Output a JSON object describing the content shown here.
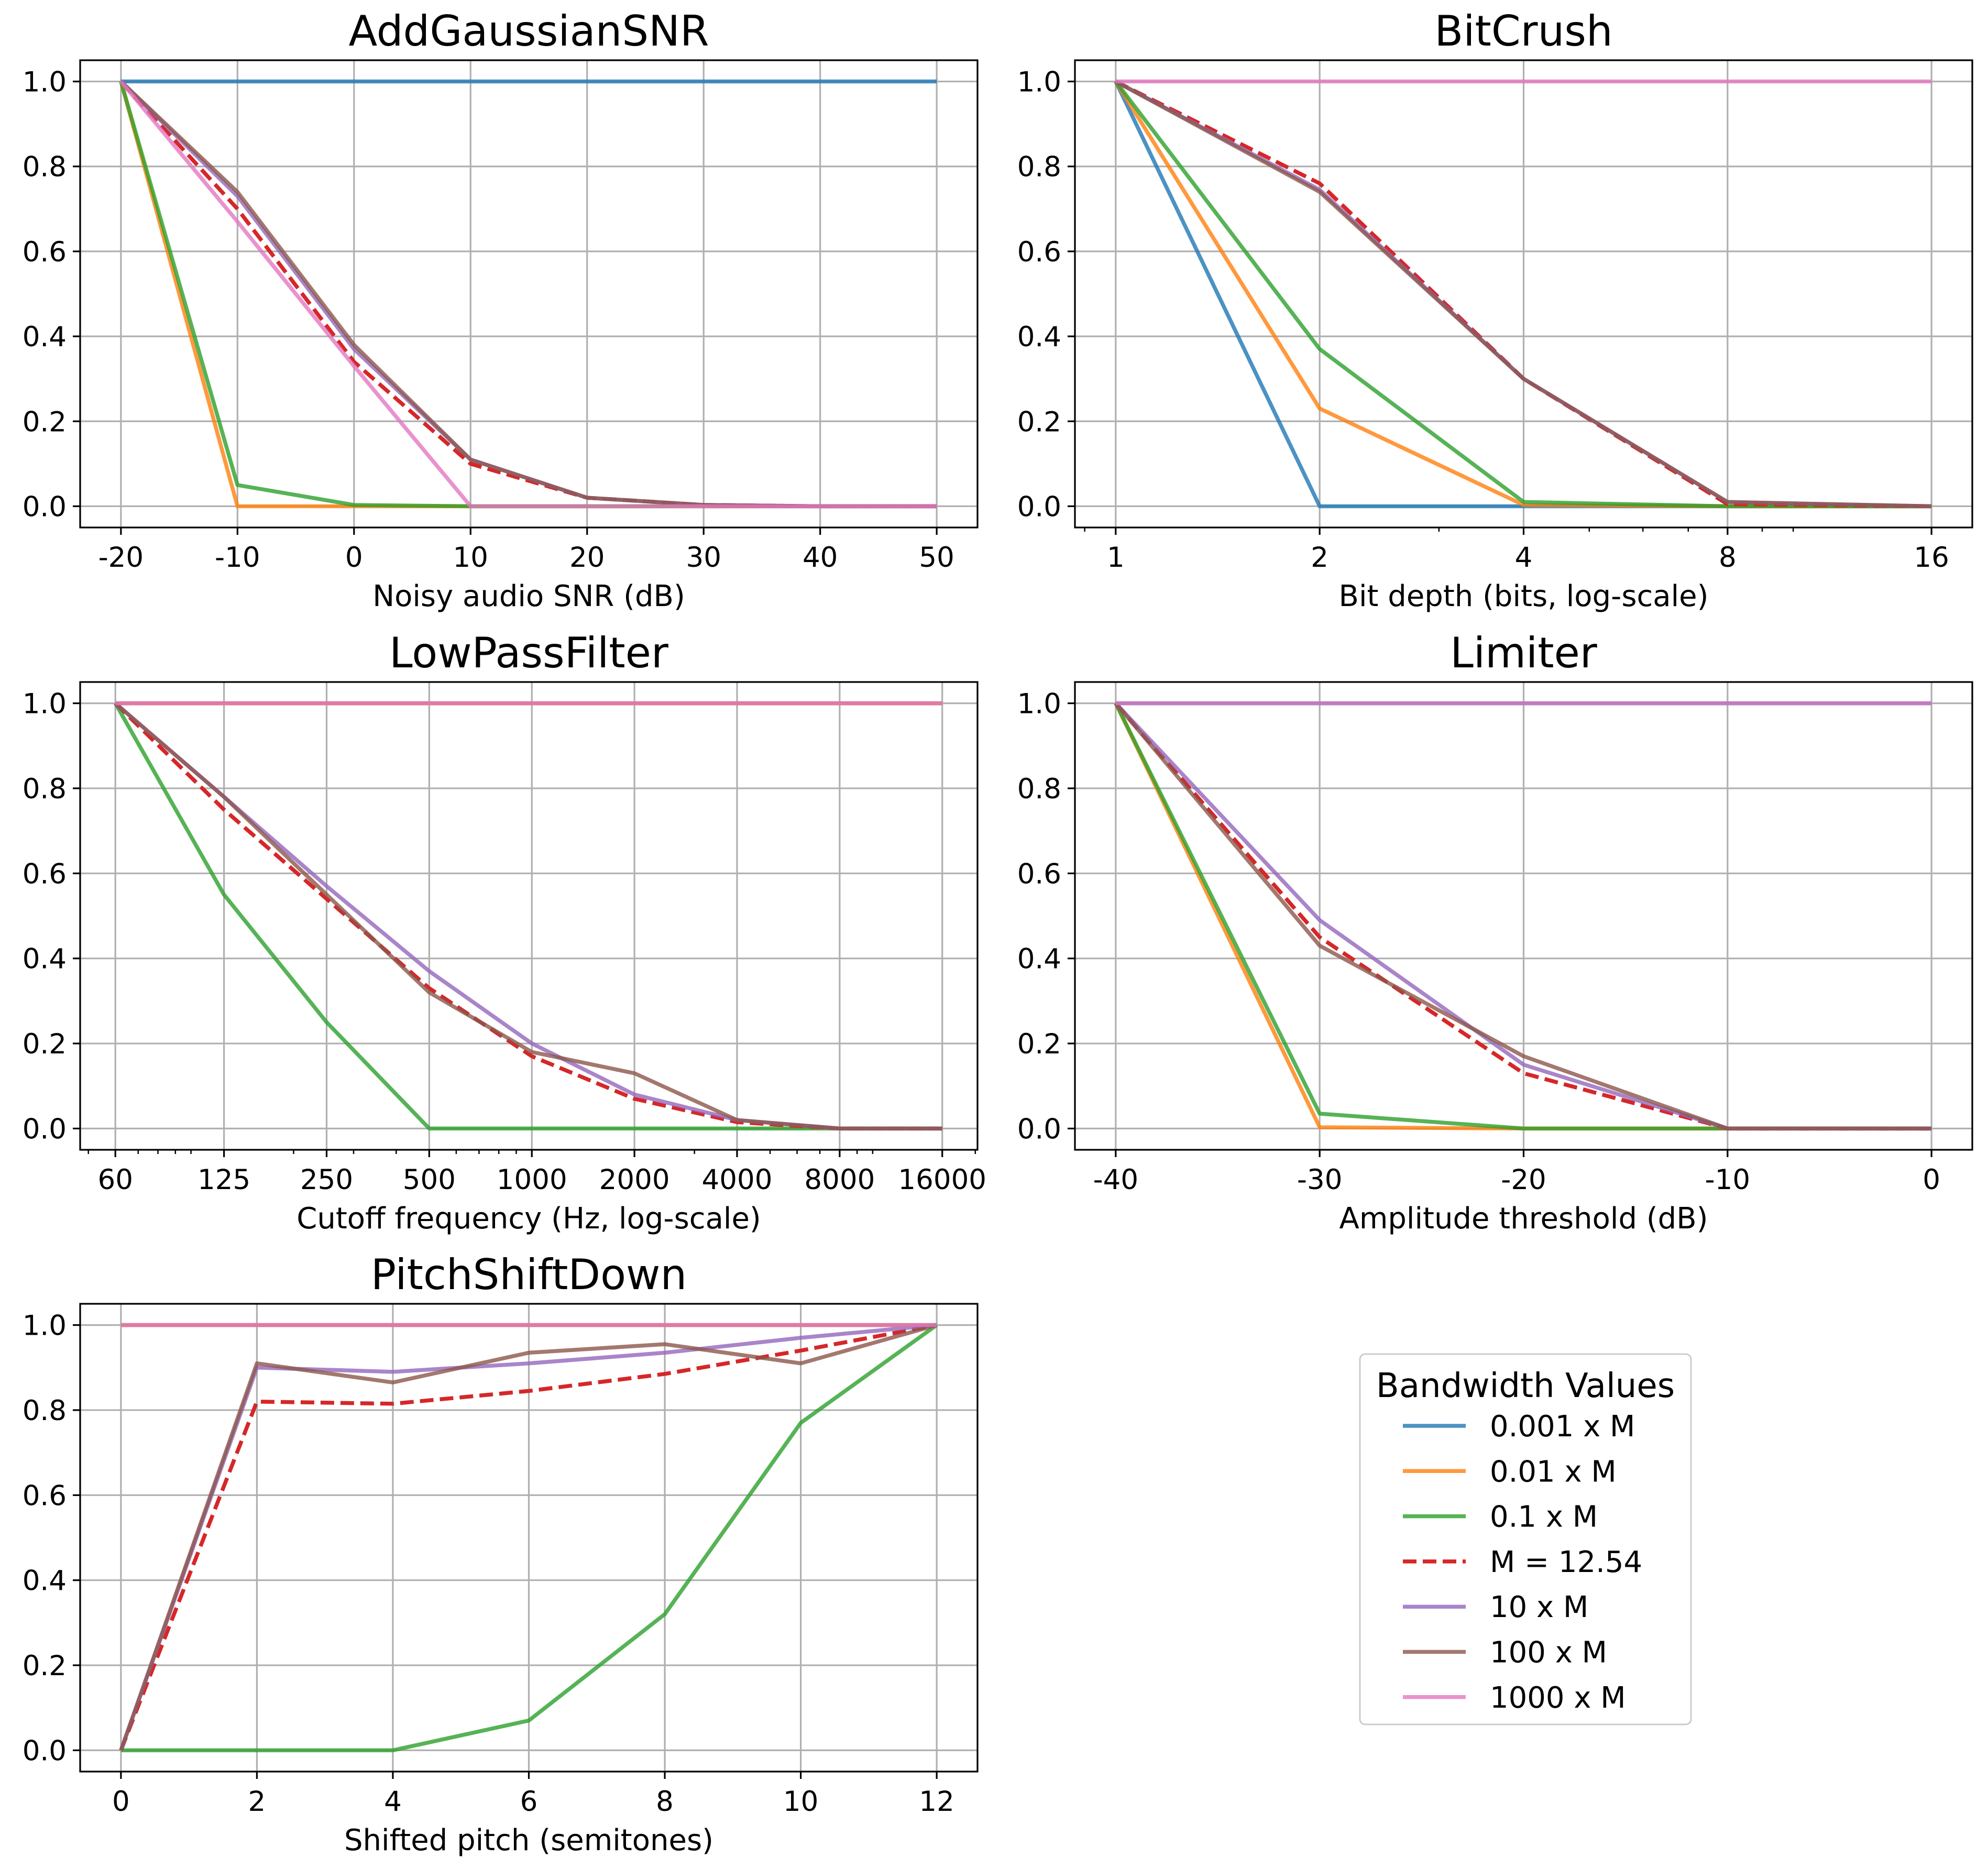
{
  "legend": {
    "title": "Bandwidth Values",
    "entries": [
      {
        "label": "0.001 x M",
        "color": "#1f77b4",
        "dashed": false
      },
      {
        "label": "0.01 x M",
        "color": "#ff7f0e",
        "dashed": false
      },
      {
        "label": "0.1 x M",
        "color": "#2ca02c",
        "dashed": false
      },
      {
        "label": "M = 12.54",
        "color": "#d62728",
        "dashed": true
      },
      {
        "label": "10 x M",
        "color": "#9467bd",
        "dashed": false
      },
      {
        "label": "100 x M",
        "color": "#8c564b",
        "dashed": false
      },
      {
        "label": "1000 x M",
        "color": "#e377c2",
        "dashed": false
      }
    ]
  },
  "chart_data": [
    {
      "type": "line",
      "title": "AddGaussianSNR",
      "xlabel": "Noisy audio SNR (dB)",
      "ylabel": "",
      "xscale": "linear",
      "xlim": [
        -23.5,
        53.5
      ],
      "ylim": [
        -0.05,
        1.05
      ],
      "xticks": [
        -20,
        -10,
        0,
        10,
        20,
        30,
        40,
        50
      ],
      "xticklabels": [
        "-20",
        "-10",
        "0",
        "10",
        "20",
        "30",
        "40",
        "50"
      ],
      "yticks": [
        0,
        0.2,
        0.4,
        0.6,
        0.8,
        1.0
      ],
      "yticklabels": [
        "0.0",
        "0.2",
        "0.4",
        "0.6",
        "0.8",
        "1.0"
      ],
      "grid": true,
      "x": [
        -20,
        -10,
        0,
        10,
        20,
        30,
        40,
        50
      ],
      "series": [
        {
          "name": "0.001 x M",
          "values": [
            1,
            1,
            1,
            1,
            1,
            1,
            1,
            1
          ]
        },
        {
          "name": "0.01 x M",
          "values": [
            1,
            0,
            0,
            0,
            0,
            0,
            0,
            0
          ]
        },
        {
          "name": "0.1 x M",
          "values": [
            1,
            0.05,
            0.003,
            0,
            0,
            0,
            0,
            0
          ]
        },
        {
          "name": "M = 12.54",
          "values": [
            1,
            0.7,
            0.34,
            0.1,
            0.02,
            0.003,
            0,
            0
          ]
        },
        {
          "name": "10 x M",
          "values": [
            1,
            0.73,
            0.37,
            0.11,
            0.02,
            0.003,
            0,
            0
          ]
        },
        {
          "name": "100 x M",
          "values": [
            1,
            0.74,
            0.38,
            0.11,
            0.02,
            0.003,
            0,
            0
          ]
        },
        {
          "name": "1000 x M",
          "values": [
            1,
            0.67,
            0.33,
            0,
            0,
            0,
            0,
            0
          ]
        }
      ]
    },
    {
      "type": "line",
      "title": "BitCrush",
      "xlabel": "Bit depth (bits, log-scale)",
      "ylabel": "",
      "xscale": "log2",
      "xlim": [
        0.8706,
        18.379
      ],
      "ylim": [
        -0.05,
        1.05
      ],
      "xticks": [
        1,
        2,
        4,
        8,
        16
      ],
      "xticklabels": [
        "1",
        "2",
        "4",
        "8",
        "16"
      ],
      "yticks": [
        0,
        0.2,
        0.4,
        0.6,
        0.8,
        1.0
      ],
      "yticklabels": [
        "0.0",
        "0.2",
        "0.4",
        "0.6",
        "0.8",
        "1.0"
      ],
      "grid": true,
      "x": [
        1,
        2,
        4,
        8,
        16
      ],
      "series": [
        {
          "name": "0.001 x M",
          "values": [
            1,
            0,
            0,
            0,
            0
          ]
        },
        {
          "name": "0.01 x M",
          "values": [
            1,
            0.23,
            0.003,
            0,
            0
          ]
        },
        {
          "name": "0.1 x M",
          "values": [
            1,
            0.37,
            0.01,
            0,
            0
          ]
        },
        {
          "name": "M = 12.54",
          "values": [
            1,
            0.76,
            0.3,
            0.005,
            0
          ]
        },
        {
          "name": "10 x M",
          "values": [
            1,
            0.745,
            0.3,
            0.01,
            0
          ]
        },
        {
          "name": "100 x M",
          "values": [
            1,
            0.74,
            0.3,
            0.01,
            0
          ]
        },
        {
          "name": "1000 x M",
          "values": [
            1,
            1,
            1,
            1,
            1
          ]
        }
      ]
    },
    {
      "type": "line",
      "title": "LowPassFilter",
      "xlabel": "Cutoff frequency (Hz, log-scale)",
      "ylabel": "",
      "xscale": "log2",
      "xlim": [
        47.3,
        20300
      ],
      "ylim": [
        -0.05,
        1.05
      ],
      "xticks": [
        60,
        125,
        250,
        500,
        1000,
        2000,
        4000,
        8000,
        16000
      ],
      "xticklabels": [
        "60",
        "125",
        "250",
        "500",
        "1000",
        "2000",
        "4000",
        "8000",
        "16000"
      ],
      "yticks": [
        0,
        0.2,
        0.4,
        0.6,
        0.8,
        1.0
      ],
      "yticklabels": [
        "0.0",
        "0.2",
        "0.4",
        "0.6",
        "0.8",
        "1.0"
      ],
      "grid": true,
      "x": [
        60,
        125,
        250,
        500,
        1000,
        2000,
        4000,
        8000,
        16000
      ],
      "series": [
        {
          "name": "0.001 x M",
          "values": [
            1,
            1,
            1,
            1,
            1,
            1,
            1,
            1,
            1
          ]
        },
        {
          "name": "0.01 x M",
          "values": [
            1,
            1,
            1,
            1,
            1,
            1,
            1,
            1,
            1
          ]
        },
        {
          "name": "0.1 x M",
          "values": [
            1,
            0.55,
            0.25,
            0,
            0,
            0,
            0,
            0,
            0
          ]
        },
        {
          "name": "M = 12.54",
          "values": [
            1,
            0.75,
            0.54,
            0.33,
            0.17,
            0.07,
            0.015,
            0,
            0
          ]
        },
        {
          "name": "10 x M",
          "values": [
            1,
            0.78,
            0.57,
            0.37,
            0.2,
            0.08,
            0.02,
            0,
            0
          ]
        },
        {
          "name": "100 x M",
          "values": [
            1,
            0.78,
            0.55,
            0.32,
            0.18,
            0.13,
            0.02,
            0,
            0
          ]
        },
        {
          "name": "1000 x M",
          "values": [
            1,
            1,
            1,
            1,
            1,
            1,
            1,
            1,
            1
          ]
        }
      ]
    },
    {
      "type": "line",
      "title": "Limiter",
      "xlabel": "Amplitude threshold (dB)",
      "ylabel": "",
      "xscale": "linear",
      "xlim": [
        -42,
        2
      ],
      "ylim": [
        -0.05,
        1.05
      ],
      "xticks": [
        -40,
        -30,
        -20,
        -10,
        0
      ],
      "xticklabels": [
        "-40",
        "-30",
        "-20",
        "-10",
        "0"
      ],
      "yticks": [
        0,
        0.2,
        0.4,
        0.6,
        0.8,
        1.0
      ],
      "yticklabels": [
        "0.0",
        "0.2",
        "0.4",
        "0.6",
        "0.8",
        "1.0"
      ],
      "grid": true,
      "x": [
        -40,
        -30,
        -20,
        -10,
        0
      ],
      "series": [
        {
          "name": "0.001 x M",
          "values": [
            1,
            1,
            1,
            1,
            1
          ]
        },
        {
          "name": "0.01 x M",
          "values": [
            1,
            0.003,
            0,
            0,
            0
          ]
        },
        {
          "name": "0.1 x M",
          "values": [
            1,
            0.035,
            0,
            0,
            0
          ]
        },
        {
          "name": "M = 12.54",
          "values": [
            1,
            0.45,
            0.13,
            0,
            0
          ]
        },
        {
          "name": "10 x M",
          "values": [
            1,
            0.49,
            0.15,
            0,
            0
          ]
        },
        {
          "name": "100 x M",
          "values": [
            1,
            0.43,
            0.17,
            0,
            0
          ]
        },
        {
          "name": "1000 x M",
          "values": [
            1,
            1,
            1,
            1,
            1
          ]
        }
      ]
    },
    {
      "type": "line",
      "title": "PitchShiftDown",
      "xlabel": "Shifted pitch (semitones)",
      "ylabel": "",
      "xscale": "linear",
      "xlim": [
        -0.6,
        12.6
      ],
      "ylim": [
        -0.05,
        1.05
      ],
      "xticks": [
        0,
        2,
        4,
        6,
        8,
        10,
        12
      ],
      "xticklabels": [
        "0",
        "2",
        "4",
        "6",
        "8",
        "10",
        "12"
      ],
      "yticks": [
        0,
        0.2,
        0.4,
        0.6,
        0.8,
        1.0
      ],
      "yticklabels": [
        "0.0",
        "0.2",
        "0.4",
        "0.6",
        "0.8",
        "1.0"
      ],
      "grid": true,
      "x": [
        0,
        2,
        4,
        6,
        8,
        10,
        12
      ],
      "series": [
        {
          "name": "0.001 x M",
          "values": [
            1,
            1,
            1,
            1,
            1,
            1,
            1
          ]
        },
        {
          "name": "0.01 x M",
          "values": [
            1,
            1,
            1,
            1,
            1,
            1,
            1
          ]
        },
        {
          "name": "0.1 x M",
          "values": [
            0,
            0,
            0,
            0.07,
            0.32,
            0.77,
            1
          ]
        },
        {
          "name": "M = 12.54",
          "values": [
            0,
            0.82,
            0.815,
            0.845,
            0.885,
            0.94,
            1
          ]
        },
        {
          "name": "10 x M",
          "values": [
            0,
            0.9,
            0.89,
            0.91,
            0.935,
            0.97,
            1
          ]
        },
        {
          "name": "100 x M",
          "values": [
            0,
            0.91,
            0.865,
            0.935,
            0.955,
            0.91,
            1
          ]
        },
        {
          "name": "1000 x M",
          "values": [
            1,
            1,
            1,
            1,
            1,
            1,
            1
          ]
        }
      ]
    }
  ]
}
